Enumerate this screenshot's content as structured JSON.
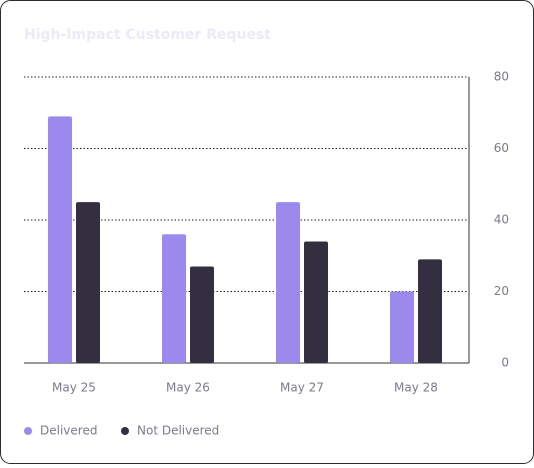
{
  "chart_data": {
    "type": "bar",
    "title": "High-Impact Customer Request",
    "categories": [
      "May 25",
      "May 26",
      "May 27",
      "May 28"
    ],
    "series": [
      {
        "name": "Delivered",
        "color": "#9b8aeb",
        "values": [
          69,
          36,
          45,
          20
        ]
      },
      {
        "name": "Not Delivered",
        "color": "#332f40",
        "values": [
          45,
          27,
          34,
          29
        ]
      }
    ],
    "ylim": [
      0,
      80
    ],
    "yticks": [
      0,
      20,
      40,
      60,
      80
    ],
    "grid": true
  }
}
